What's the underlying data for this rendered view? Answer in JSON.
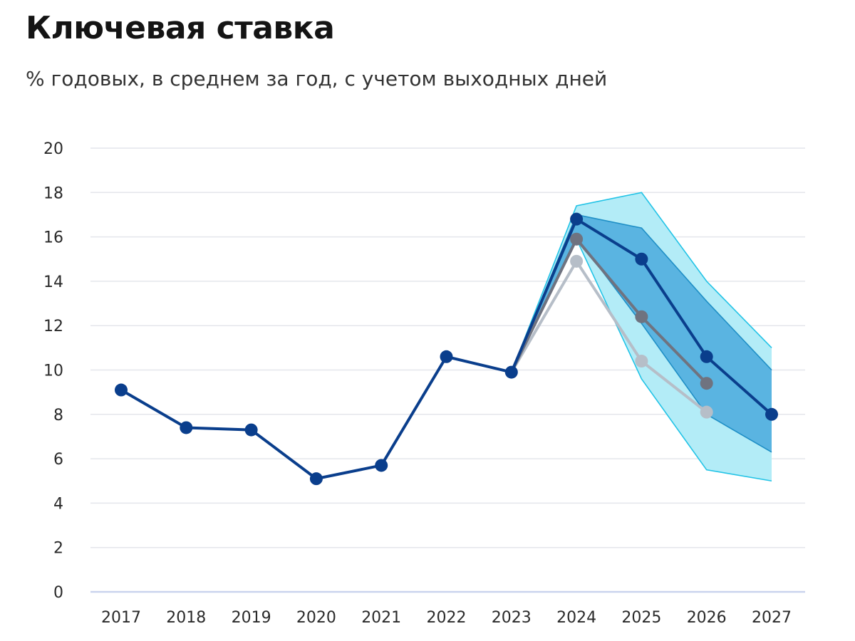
{
  "title": "Ключевая ставка",
  "subtitle": "% годовых, в среднем за год, с учетом выходных дней",
  "chart_data": {
    "type": "line",
    "title": "Ключевая ставка",
    "subtitle": "% годовых, в среднем за год, с учетом выходных дней",
    "x": [
      "2017",
      "2018",
      "2019",
      "2020",
      "2021",
      "2022",
      "2023",
      "2024",
      "2025",
      "2026",
      "2027"
    ],
    "ylim": [
      0,
      20
    ],
    "yticks": [
      0,
      2,
      4,
      6,
      8,
      10,
      12,
      14,
      16,
      18,
      20
    ],
    "grid": true,
    "bands": [
      {
        "id": "outer",
        "color": "#b3ecf7",
        "edge_color": "#22c3e6",
        "x": [
          "2023",
          "2024",
          "2025",
          "2026",
          "2027"
        ],
        "upper": [
          9.9,
          17.4,
          18.0,
          14.0,
          11.0
        ],
        "lower": [
          9.9,
          15.9,
          9.6,
          5.5,
          5.0
        ]
      },
      {
        "id": "inner",
        "color": "#5ab4e1",
        "edge_color": "#1f8fc6",
        "x": [
          "2023",
          "2024",
          "2025",
          "2026",
          "2027"
        ],
        "upper": [
          9.9,
          17.0,
          16.4,
          13.1,
          10.0
        ],
        "lower": [
          9.9,
          16.0,
          12.1,
          8.0,
          6.3
        ]
      }
    ],
    "series": [
      {
        "id": "light",
        "color": "#b6bec8",
        "x": [
          "2023",
          "2024",
          "2025",
          "2026"
        ],
        "values": [
          9.9,
          14.9,
          10.4,
          8.1
        ]
      },
      {
        "id": "gray",
        "color": "#6f7380",
        "x": [
          "2023",
          "2024",
          "2025",
          "2026"
        ],
        "values": [
          9.9,
          15.9,
          12.4,
          9.4
        ]
      },
      {
        "id": "main",
        "color": "#0a3e8c",
        "x": [
          "2017",
          "2018",
          "2019",
          "2020",
          "2021",
          "2022",
          "2023",
          "2024",
          "2025",
          "2026",
          "2027"
        ],
        "values": [
          9.1,
          7.4,
          7.3,
          5.1,
          5.7,
          10.6,
          9.9,
          16.8,
          15.0,
          10.6,
          8.0
        ]
      }
    ]
  }
}
